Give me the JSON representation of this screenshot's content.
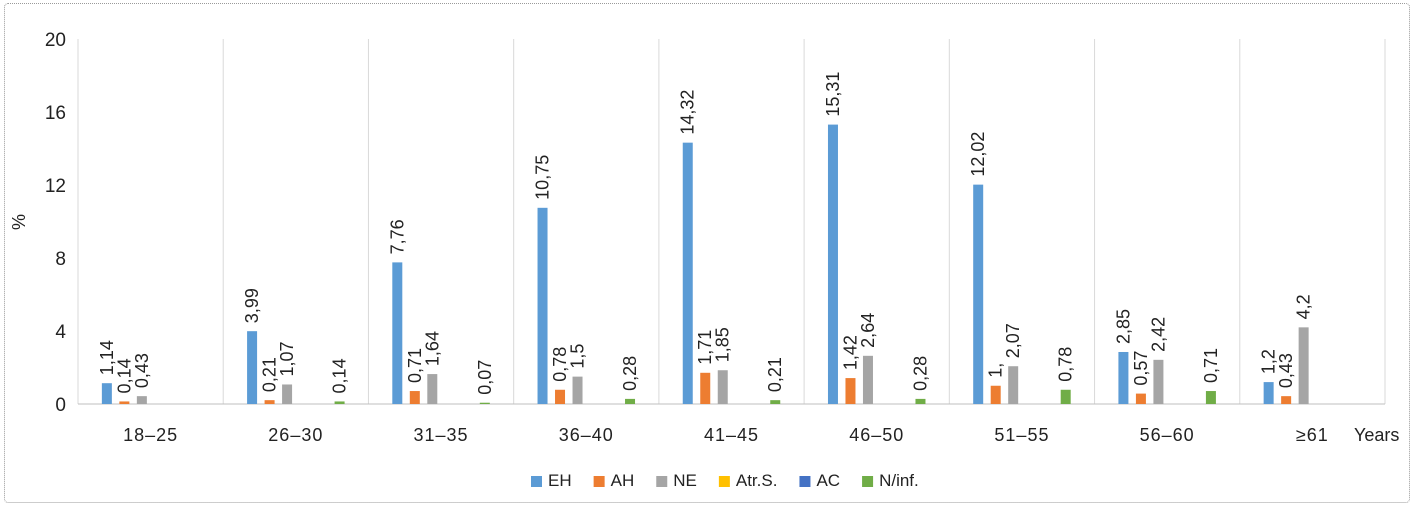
{
  "chart_data": {
    "type": "bar",
    "title": "",
    "xlabel": "Years",
    "ylabel": "%",
    "ylim": [
      0,
      20
    ],
    "yticks": [
      0,
      4,
      8,
      12,
      16,
      20
    ],
    "grid": "vertical category separators",
    "legend_position": "bottom",
    "categories": [
      "18–25",
      "26–30",
      "31–35",
      "36–40",
      "41–45",
      "46–50",
      "51–55",
      "56–60",
      "≥61"
    ],
    "series": [
      {
        "name": "EH",
        "color": "#5b9bd5",
        "values": [
          1.14,
          3.99,
          7.76,
          10.75,
          14.32,
          15.31,
          12.02,
          2.85,
          1.2
        ],
        "labels": [
          "1,14",
          "3,99",
          "7,76",
          "10,75",
          "14,32",
          "15,31",
          "12,02",
          "2,85",
          "1,2"
        ]
      },
      {
        "name": "AH",
        "color": "#ed7d31",
        "values": [
          0.14,
          0.21,
          0.71,
          0.78,
          1.71,
          1.42,
          1.0,
          0.57,
          0.43
        ],
        "labels": [
          "0,14",
          "0,21",
          "0,71",
          "0,78",
          "1,71",
          "1,42",
          "1,",
          "0,57",
          "0,43"
        ]
      },
      {
        "name": "NE",
        "color": "#a5a5a5",
        "values": [
          0.43,
          1.07,
          1.64,
          1.5,
          1.85,
          2.64,
          2.07,
          2.42,
          4.2
        ],
        "labels": [
          "0,43",
          "1,07",
          "1,64",
          "1,5",
          "1,85",
          "2,64",
          "2,07",
          "2,42",
          "4,2"
        ]
      },
      {
        "name": "Atr.S.",
        "color": "#ffc000",
        "values": [
          null,
          null,
          null,
          null,
          null,
          null,
          null,
          null,
          null
        ],
        "labels": [
          "",
          "",
          "",
          "",
          "",
          "",
          "",
          "",
          ""
        ]
      },
      {
        "name": "AC",
        "color": "#4472c4",
        "values": [
          null,
          null,
          null,
          null,
          null,
          null,
          null,
          null,
          null
        ],
        "labels": [
          "",
          "",
          "",
          "",
          "",
          "",
          "",
          "",
          ""
        ]
      },
      {
        "name": "N/inf.",
        "color": "#70ad47",
        "values": [
          null,
          0.14,
          0.07,
          0.28,
          0.21,
          0.28,
          0.78,
          0.71,
          null
        ],
        "labels": [
          "",
          "0,14",
          "0,07",
          "0,28",
          "0,21",
          "0,28",
          "0,78",
          "0,71",
          ""
        ]
      }
    ]
  }
}
